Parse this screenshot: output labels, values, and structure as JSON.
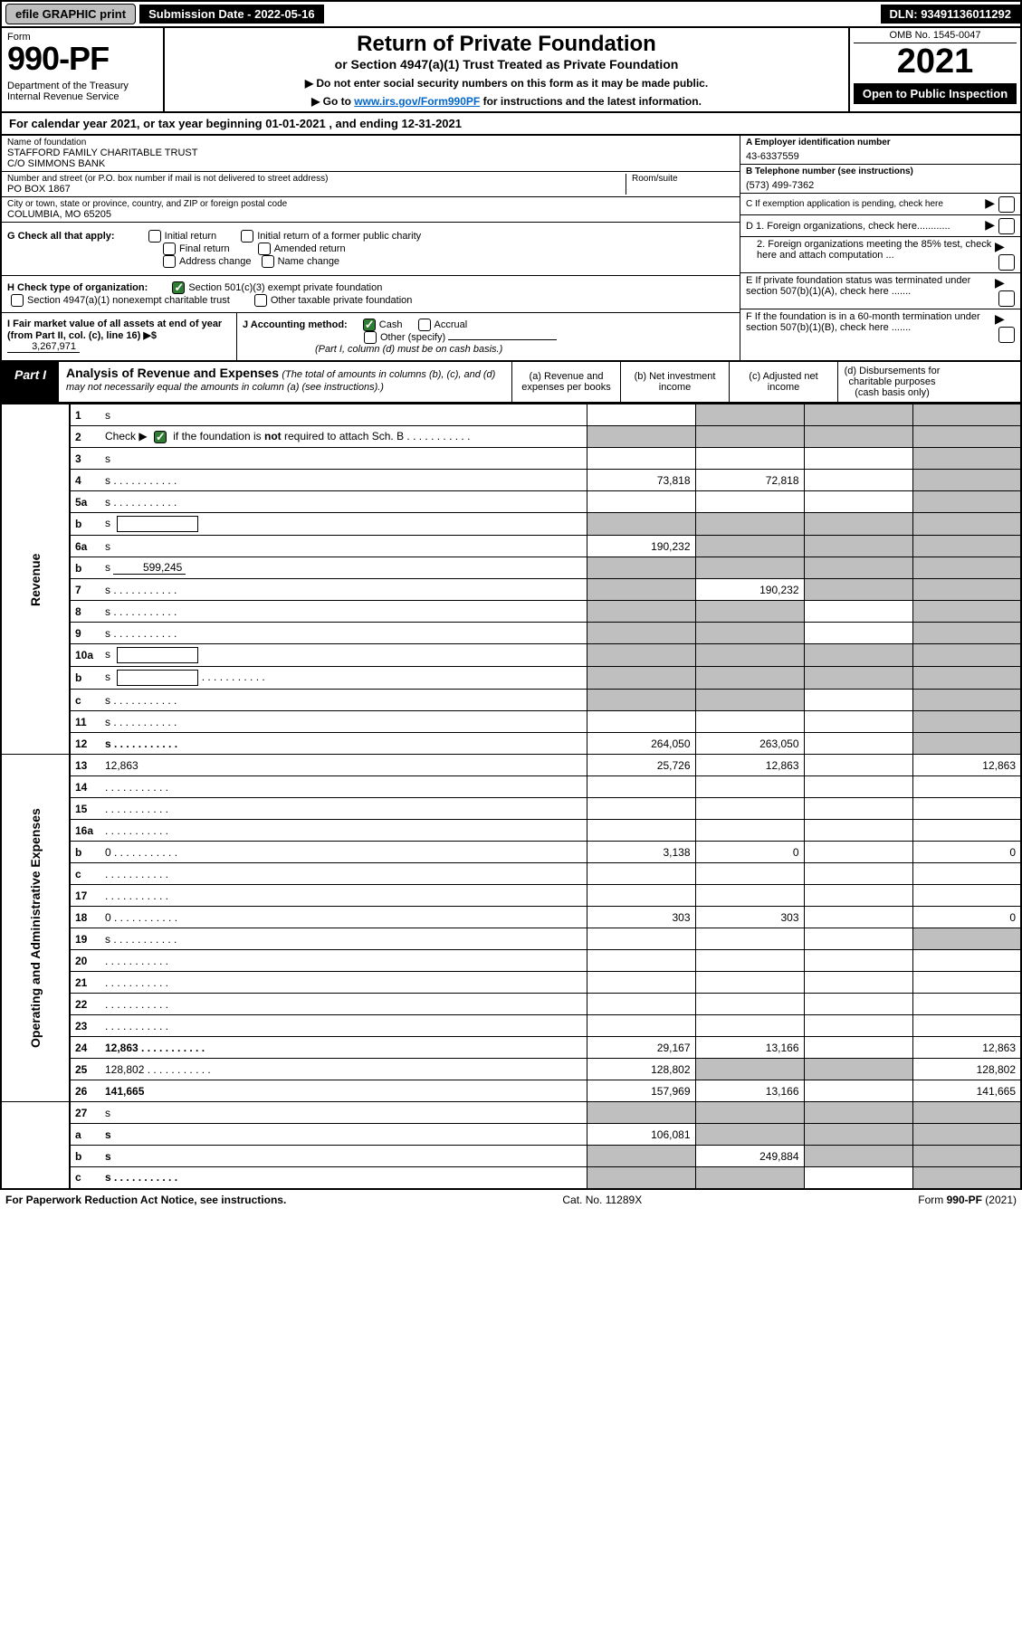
{
  "top_bar": {
    "efile": "efile GRAPHIC print",
    "sub_date": "Submission Date - 2022-05-16",
    "dln": "DLN: 93491136011292"
  },
  "header": {
    "form_label": "Form",
    "form_no": "990-PF",
    "dept": "Department of the Treasury\nInternal Revenue Service",
    "title": "Return of Private Foundation",
    "subtitle": "or Section 4947(a)(1) Trust Treated as Private Foundation",
    "note1": "▶ Do not enter social security numbers on this form as it may be made public.",
    "note2_pre": "▶ Go to ",
    "note2_link": "www.irs.gov/Form990PF",
    "note2_post": " for instructions and the latest information.",
    "omb": "OMB No. 1545-0047",
    "year": "2021",
    "open": "Open to Public Inspection"
  },
  "cal_year": "For calendar year 2021, or tax year beginning 01-01-2021          , and ending 12-31-2021",
  "org": {
    "name_lbl": "Name of foundation",
    "name": "STAFFORD FAMILY CHARITABLE TRUST\nC/O SIMMONS BANK",
    "addr_lbl": "Number and street (or P.O. box number if mail is not delivered to street address)",
    "room_lbl": "Room/suite",
    "addr": "PO BOX 1867",
    "city_lbl": "City or town, state or province, country, and ZIP or foreign postal code",
    "city": "COLUMBIA, MO  65205",
    "ein_lbl": "A Employer identification number",
    "ein": "43-6337559",
    "tel_lbl": "B Telephone number (see instructions)",
    "tel": "(573) 499-7362",
    "c_lbl": "C If exemption application is pending, check here"
  },
  "g": {
    "label": "G Check all that apply:",
    "opts": [
      "Initial return",
      "Initial return of a former public charity",
      "Final return",
      "Amended return",
      "Address change",
      "Name change"
    ]
  },
  "h": {
    "label": "H Check type of organization:",
    "opt1": "Section 501(c)(3) exempt private foundation",
    "opt2": "Section 4947(a)(1) nonexempt charitable trust",
    "opt3": "Other taxable private foundation"
  },
  "d": {
    "d1": "D 1. Foreign organizations, check here............",
    "d2": "2. Foreign organizations meeting the 85% test, check here and attach computation ...",
    "e": "E  If private foundation status was terminated under section 507(b)(1)(A), check here .......",
    "f": "F  If the foundation is in a 60-month termination under section 507(b)(1)(B), check here ......."
  },
  "ij": {
    "i_lbl": "I Fair market value of all assets at end of year (from Part II, col. (c), line 16) ▶$",
    "i_val": "3,267,971",
    "j_lbl": "J Accounting method:",
    "j_cash": "Cash",
    "j_accrual": "Accrual",
    "j_other": "Other (specify)",
    "j_note": "(Part I, column (d) must be on cash basis.)"
  },
  "part1": {
    "badge": "Part I",
    "title": "Analysis of Revenue and Expenses",
    "note": "(The total of amounts in columns (b), (c), and (d) may not necessarily equal the amounts in column (a) (see instructions).)",
    "col_a": "(a) Revenue and expenses per books",
    "col_b": "(b) Net investment income",
    "col_c": "(c) Adjusted net income",
    "col_d": "(d) Disbursements for charitable purposes (cash basis only)"
  },
  "side_rev": "Revenue",
  "side_oae": "Operating and Administrative Expenses",
  "rows": [
    {
      "n": "1",
      "d": "s",
      "a": "",
      "b": "s",
      "c": "s"
    },
    {
      "n": "2",
      "d": "s",
      "a": "s",
      "b": "s",
      "c": "s",
      "sch": true,
      "dots": true
    },
    {
      "n": "3",
      "d": "s",
      "a": "",
      "b": "",
      "c": ""
    },
    {
      "n": "4",
      "d": "s",
      "a": "73,818",
      "b": "72,818",
      "c": "",
      "dots": true
    },
    {
      "n": "5a",
      "d": "s",
      "a": "",
      "b": "",
      "c": "",
      "dots": true
    },
    {
      "n": "b",
      "d": "s",
      "a": "s",
      "b": "s",
      "c": "s",
      "box": true
    },
    {
      "n": "6a",
      "d": "s",
      "a": "190,232",
      "b": "s",
      "c": "s"
    },
    {
      "n": "b",
      "d": "s",
      "a": "s",
      "b": "s",
      "c": "s",
      "inline": "599,245"
    },
    {
      "n": "7",
      "d": "s",
      "a": "s",
      "b": "190,232",
      "c": "s",
      "dots": true
    },
    {
      "n": "8",
      "d": "s",
      "a": "s",
      "b": "s",
      "c": "",
      "dots": true
    },
    {
      "n": "9",
      "d": "s",
      "a": "s",
      "b": "s",
      "c": "",
      "dots": true
    },
    {
      "n": "10a",
      "d": "s",
      "a": "s",
      "b": "s",
      "c": "s",
      "box": true
    },
    {
      "n": "b",
      "d": "s",
      "a": "s",
      "b": "s",
      "c": "s",
      "box": true,
      "dots": true
    },
    {
      "n": "c",
      "d": "s",
      "a": "s",
      "b": "s",
      "c": "",
      "dots": true
    },
    {
      "n": "11",
      "d": "s",
      "a": "",
      "b": "",
      "c": "",
      "dots": true
    },
    {
      "n": "12",
      "d": "s",
      "a": "264,050",
      "b": "263,050",
      "c": "",
      "bold": true,
      "dots": true
    }
  ],
  "rows_exp": [
    {
      "n": "13",
      "d": "12,863",
      "a": "25,726",
      "b": "12,863",
      "c": ""
    },
    {
      "n": "14",
      "d": "",
      "a": "",
      "b": "",
      "c": "",
      "dots": true
    },
    {
      "n": "15",
      "d": "",
      "a": "",
      "b": "",
      "c": "",
      "dots": true
    },
    {
      "n": "16a",
      "d": "",
      "a": "",
      "b": "",
      "c": "",
      "dots": true
    },
    {
      "n": "b",
      "d": "0",
      "a": "3,138",
      "b": "0",
      "c": "",
      "dots": true
    },
    {
      "n": "c",
      "d": "",
      "a": "",
      "b": "",
      "c": "",
      "dots": true
    },
    {
      "n": "17",
      "d": "",
      "a": "",
      "b": "",
      "c": "",
      "dots": true
    },
    {
      "n": "18",
      "d": "0",
      "a": "303",
      "b": "303",
      "c": "",
      "dots": true
    },
    {
      "n": "19",
      "d": "s",
      "a": "",
      "b": "",
      "c": "",
      "dots": true
    },
    {
      "n": "20",
      "d": "",
      "a": "",
      "b": "",
      "c": "",
      "dots": true
    },
    {
      "n": "21",
      "d": "",
      "a": "",
      "b": "",
      "c": "",
      "dots": true
    },
    {
      "n": "22",
      "d": "",
      "a": "",
      "b": "",
      "c": "",
      "dots": true
    },
    {
      "n": "23",
      "d": "",
      "a": "",
      "b": "",
      "c": "",
      "dots": true
    },
    {
      "n": "24",
      "d": "12,863",
      "a": "29,167",
      "b": "13,166",
      "c": "",
      "bold": true,
      "dots": true
    },
    {
      "n": "25",
      "d": "128,802",
      "a": "128,802",
      "b": "s",
      "c": "s",
      "dots": true
    },
    {
      "n": "26",
      "d": "141,665",
      "a": "157,969",
      "b": "13,166",
      "c": "",
      "bold": true
    }
  ],
  "rows_net": [
    {
      "n": "27",
      "d": "s",
      "a": "s",
      "b": "s",
      "c": "s"
    },
    {
      "n": "a",
      "d": "s",
      "a": "106,081",
      "b": "s",
      "c": "s",
      "bold": true
    },
    {
      "n": "b",
      "d": "s",
      "a": "s",
      "b": "249,884",
      "c": "s",
      "bold": true
    },
    {
      "n": "c",
      "d": "s",
      "a": "s",
      "b": "s",
      "c": "",
      "bold": true,
      "dots": true
    }
  ],
  "footer": {
    "left": "For Paperwork Reduction Act Notice, see instructions.",
    "mid": "Cat. No. 11289X",
    "right": "Form 990-PF (2021)"
  },
  "colors": {
    "grey": "#bfbfbf",
    "link": "#0066cc",
    "green": "#2e7d32"
  }
}
